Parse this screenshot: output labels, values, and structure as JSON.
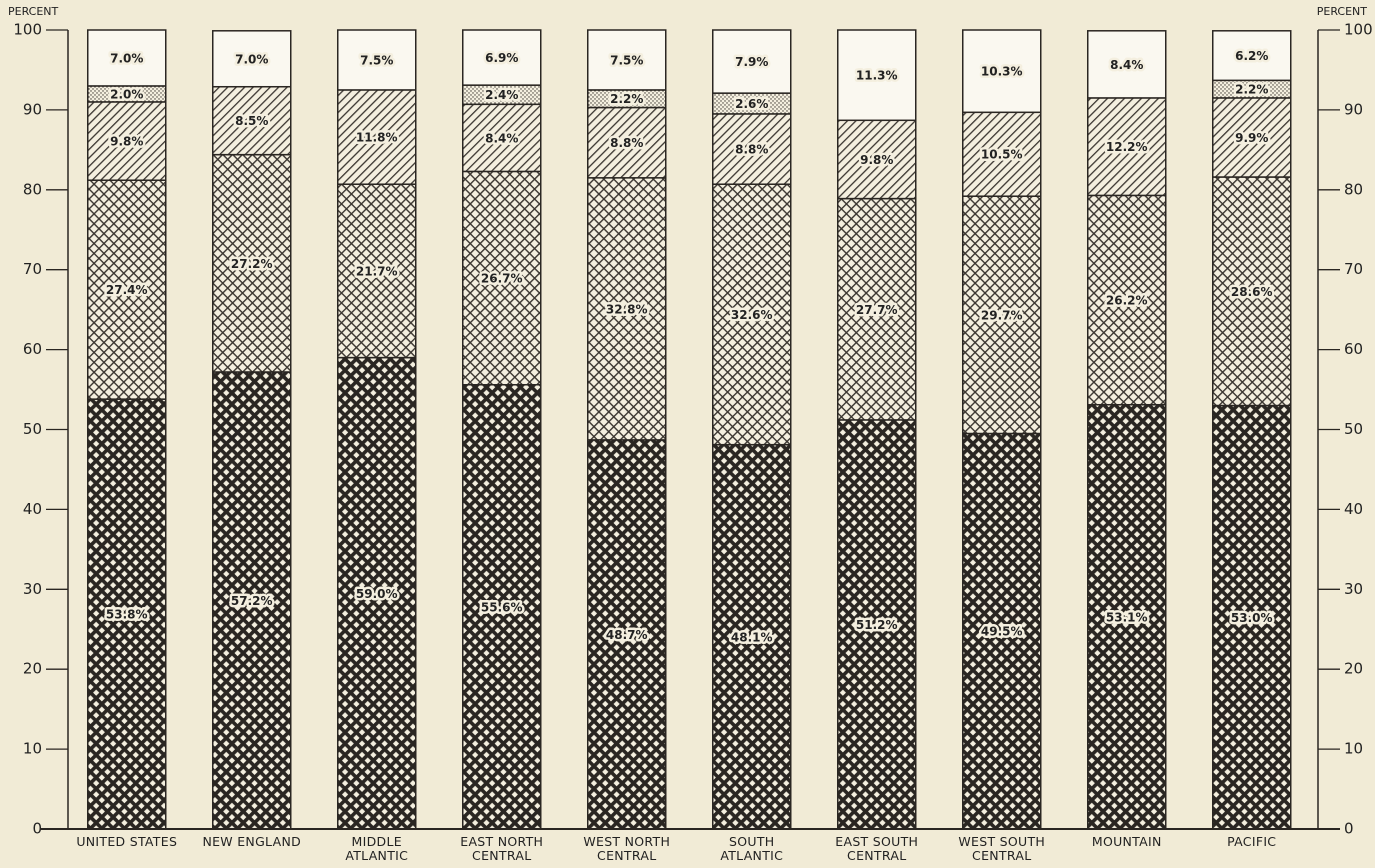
{
  "chart_data": {
    "type": "stacked_bar",
    "y_axis_label": "PERCENT",
    "y2_axis_label": "PERCENT",
    "categories": [
      "UNITED STATES",
      "NEW ENGLAND",
      "MIDDLE ATLANTIC",
      "EAST NORTH CENTRAL",
      "WEST NORTH CENTRAL",
      "SOUTH ATLANTIC",
      "EAST SOUTH CENTRAL",
      "WEST SOUTH CENTRAL",
      "MOUNTAIN",
      "PACIFIC"
    ],
    "series": [
      {
        "pattern": "dense-crosshatch",
        "color": "#2a2622",
        "values": [
          53.8,
          57.2,
          59.0,
          55.6,
          48.7,
          48.1,
          51.2,
          49.5,
          53.1,
          53.0
        ],
        "value_labels": [
          "53.8%",
          "57.2%",
          "59.0%",
          "55.6%",
          "48.7%",
          "48.1%",
          "51.2%",
          "49.5%",
          "53.1%",
          "53.0%"
        ]
      },
      {
        "pattern": "light-crosshatch",
        "color": "#3a3530",
        "values": [
          27.4,
          27.2,
          21.7,
          26.7,
          32.8,
          32.6,
          27.7,
          29.7,
          26.2,
          28.6
        ],
        "value_labels": [
          "27.4%",
          "27.2%",
          "21.7%",
          "26.7%",
          "32.8%",
          "32.6%",
          "27.7%",
          "29.7%",
          "26.2%",
          "28.6%"
        ]
      },
      {
        "pattern": "diagonal-hatch",
        "color": "#3a3530",
        "values": [
          9.8,
          8.5,
          11.8,
          8.4,
          8.8,
          8.8,
          9.8,
          10.5,
          12.2,
          9.9
        ],
        "value_labels": [
          "9.8%",
          "8.5%",
          "11.8%",
          "8.4%",
          "8.8%",
          "8.8%",
          "9.8%",
          "10.5%",
          "12.2%",
          "9.9%"
        ]
      },
      {
        "pattern": "dots",
        "color": "#3a3530",
        "values": [
          2.0,
          null,
          null,
          2.4,
          2.2,
          2.6,
          null,
          null,
          null,
          2.2
        ],
        "value_labels": [
          "2.0%",
          null,
          null,
          "2.4%",
          "2.2%",
          "2.6%",
          null,
          null,
          null,
          "2.2%"
        ]
      },
      {
        "pattern": "blank",
        "color": "#faf8f0",
        "values": [
          7.0,
          7.0,
          7.5,
          6.9,
          7.5,
          7.9,
          11.3,
          10.3,
          8.4,
          6.2
        ],
        "value_labels": [
          "7.0%",
          "7.0%",
          "7.5%",
          "6.9%",
          "7.5%",
          "7.9%",
          "11.3%",
          "10.3%",
          "8.4%",
          "6.2%"
        ]
      }
    ],
    "ylim": [
      0,
      100
    ],
    "yticks": [
      0,
      10,
      20,
      30,
      40,
      50,
      60,
      70,
      80,
      90,
      100
    ],
    "y2lim": [
      0,
      100
    ],
    "y2ticks": [
      0,
      10,
      20,
      30,
      40,
      50,
      60,
      70,
      80,
      90,
      100
    ]
  }
}
